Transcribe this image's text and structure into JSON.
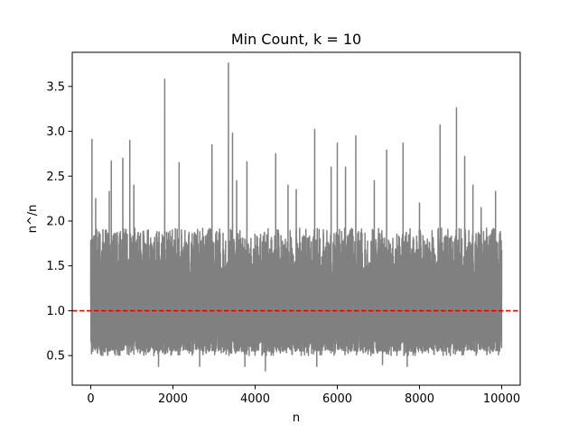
{
  "chart_data": {
    "type": "line",
    "title": "Min Count, k = 10",
    "xlabel": "n",
    "ylabel": "n^/n",
    "xlim": [
      -450,
      10450
    ],
    "ylim": [
      0.17,
      3.88
    ],
    "xticks": [
      0,
      2000,
      4000,
      6000,
      8000,
      10000
    ],
    "xtick_labels": [
      "0",
      "2000",
      "4000",
      "6000",
      "8000",
      "10000"
    ],
    "yticks": [
      0.5,
      1.0,
      1.5,
      2.0,
      2.5,
      3.0,
      3.5
    ],
    "ytick_labels": [
      "0.5",
      "1.0",
      "1.5",
      "2.0",
      "2.5",
      "3.0",
      "3.5"
    ],
    "grid": false,
    "series": [
      {
        "color": "#808080",
        "x_range": [
          0,
          10000
        ],
        "n_points": 10000,
        "typical_min": 0.5,
        "typical_max": 1.9,
        "overall_min": 0.33,
        "overall_max": 3.76,
        "peaks": [
          {
            "x": 30,
            "y": 2.91
          },
          {
            "x": 120,
            "y": 2.25
          },
          {
            "x": 450,
            "y": 2.33
          },
          {
            "x": 500,
            "y": 2.67
          },
          {
            "x": 780,
            "y": 2.7
          },
          {
            "x": 950,
            "y": 2.9
          },
          {
            "x": 1050,
            "y": 2.4
          },
          {
            "x": 1800,
            "y": 3.58
          },
          {
            "x": 2150,
            "y": 2.65
          },
          {
            "x": 2650,
            "y": 2.5
          },
          {
            "x": 2950,
            "y": 2.85
          },
          {
            "x": 3350,
            "y": 3.76
          },
          {
            "x": 3450,
            "y": 2.98
          },
          {
            "x": 3550,
            "y": 2.45
          },
          {
            "x": 3800,
            "y": 2.66
          },
          {
            "x": 4250,
            "y": 2.4
          },
          {
            "x": 4500,
            "y": 2.75
          },
          {
            "x": 4800,
            "y": 2.4
          },
          {
            "x": 5000,
            "y": 2.35
          },
          {
            "x": 5450,
            "y": 3.02
          },
          {
            "x": 5850,
            "y": 2.6
          },
          {
            "x": 6000,
            "y": 2.87
          },
          {
            "x": 6200,
            "y": 2.6
          },
          {
            "x": 6450,
            "y": 2.95
          },
          {
            "x": 6900,
            "y": 2.45
          },
          {
            "x": 7200,
            "y": 2.79
          },
          {
            "x": 7600,
            "y": 2.87
          },
          {
            "x": 8000,
            "y": 2.2
          },
          {
            "x": 8500,
            "y": 3.07
          },
          {
            "x": 8900,
            "y": 3.26
          },
          {
            "x": 9100,
            "y": 2.72
          },
          {
            "x": 9300,
            "y": 2.4
          },
          {
            "x": 9500,
            "y": 2.15
          },
          {
            "x": 9850,
            "y": 2.33
          }
        ],
        "dips": [
          {
            "x": 1650,
            "y": 0.38
          },
          {
            "x": 2650,
            "y": 0.38
          },
          {
            "x": 3750,
            "y": 0.38
          },
          {
            "x": 4250,
            "y": 0.33
          },
          {
            "x": 5500,
            "y": 0.38
          },
          {
            "x": 7100,
            "y": 0.4
          },
          {
            "x": 7700,
            "y": 0.38
          }
        ]
      }
    ],
    "hlines": [
      {
        "y": 1.0,
        "color": "#dd0000",
        "style": "dashed"
      }
    ]
  }
}
